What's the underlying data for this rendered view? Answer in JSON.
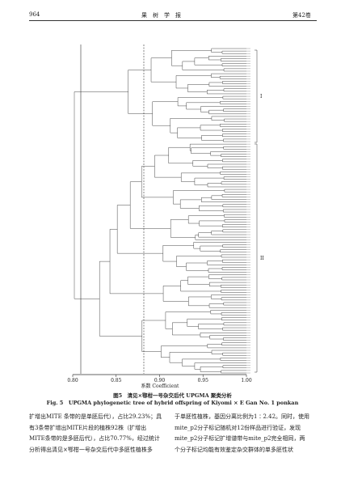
{
  "header": {
    "page": "964",
    "journal": "果　树　学　报",
    "volume": "第42卷"
  },
  "figure": {
    "clades": [
      "I",
      "II"
    ],
    "axis_ticks": [
      "0.80",
      "0.85",
      "0.90",
      "0.95",
      "1.00"
    ],
    "axis_title": "系数 Coefficient",
    "caption_cn": "图5　清见×鄂柑一号杂交后代 UPGMA 聚类分析",
    "caption_en": "Fig. 5　UPGMA phylogenetic tree of hybrid offspring of Kiyomi × E Gan No. 1 ponkan"
  },
  "body": {
    "left": [
      "扩增出MITE 条带的是单胚后代），占比29.23%；具",
      "有3条带扩增出MITE片段的植株92株（扩增出",
      "MITE条带的是多胚后代），占比70.77%，经过统计",
      "分析得出清见×鄂柑一号杂交后代中多胚性植株多"
    ],
    "right": [
      "于单胚性植株，基因分离比例为1∶2.42。同时，使用",
      "mite_p2分子标记随机对12份样品进行验证，发现",
      "mite_p2分子标记扩增谱带与mite_p2完全相同，两",
      "个分子标记均能有效鉴定杂交群体的单多胚性状"
    ]
  }
}
